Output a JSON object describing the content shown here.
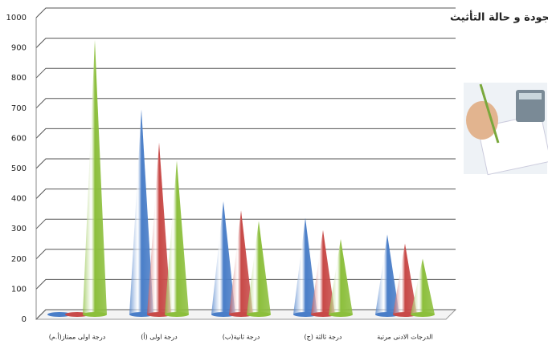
{
  "chart_data": {
    "type": "cone",
    "title": "متوسط قيمة الايجارات الشهرية للعقارات الاستثمارية حسب درجة الجودة و حالة التأثيث",
    "categories": [
      "درجة اولى ممتاز(أ.م)",
      "درجة اولى (أ)",
      "درجة ثانية(ب)",
      "درجة ثالثة (ج)",
      "الدرجات الادنى مرتبة"
    ],
    "series": [
      {
        "color": "#4a7ec8",
        "values": [
          5,
          680,
          375,
          320,
          265
        ]
      },
      {
        "color": "#c84a48",
        "values": [
          5,
          570,
          345,
          280,
          235
        ]
      },
      {
        "color": "#8cbf3c",
        "values": [
          910,
          510,
          310,
          250,
          185
        ]
      }
    ],
    "ylim": [
      0,
      1000
    ],
    "yticks": [
      0,
      100,
      200,
      300,
      400,
      500,
      600,
      700,
      800,
      900,
      1000
    ],
    "grid": true
  }
}
